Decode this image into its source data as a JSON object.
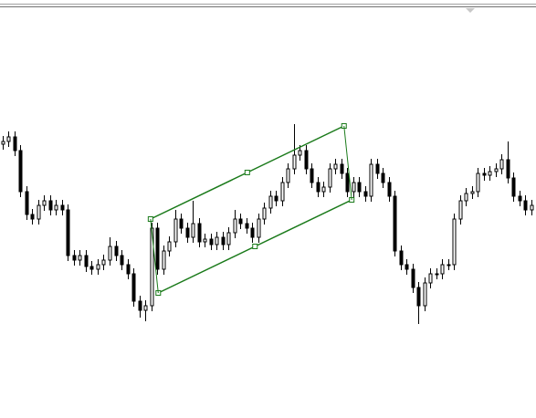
{
  "chart_data": {
    "type": "candlestick",
    "xlim": [
      -0.4615,
      89.846
    ],
    "ylim": [
      0,
      446
    ],
    "up_color": "#ffffff",
    "down_color": "#000000",
    "edge_color": "#000000",
    "open": [
      300,
      303,
      308,
      293,
      248,
      223,
      218,
      233,
      238,
      228,
      233,
      228,
      178,
      173,
      178,
      166,
      163,
      168,
      173,
      188,
      178,
      168,
      158,
      128,
      118,
      123,
      208,
      163,
      183,
      193,
      218,
      208,
      198,
      213,
      193,
      196,
      190,
      198,
      190,
      203,
      218,
      213,
      208,
      198,
      218,
      230,
      243,
      238,
      258,
      273,
      288,
      293,
      273,
      258,
      248,
      253,
      273,
      278,
      268,
      248,
      258,
      248,
      243,
      278,
      268,
      258,
      243,
      183,
      168,
      163,
      143,
      123,
      148,
      158,
      158,
      168,
      168,
      218,
      238,
      246,
      248,
      268,
      266,
      270,
      273,
      283,
      263,
      243,
      238,
      228
    ],
    "high": [
      309,
      314,
      314,
      299,
      254,
      229,
      239,
      244,
      244,
      239,
      239,
      234,
      184,
      184,
      184,
      172,
      174,
      179,
      198,
      194,
      184,
      174,
      164,
      134,
      129,
      214,
      214,
      189,
      199,
      228,
      224,
      214,
      238,
      219,
      202,
      202,
      204,
      204,
      209,
      228,
      224,
      219,
      214,
      224,
      236,
      249,
      249,
      264,
      279,
      322,
      299,
      299,
      279,
      264,
      259,
      279,
      284,
      284,
      274,
      264,
      264,
      254,
      284,
      284,
      274,
      264,
      249,
      189,
      174,
      169,
      149,
      154,
      164,
      164,
      174,
      174,
      224,
      244,
      252,
      254,
      274,
      274,
      276,
      279,
      289,
      303,
      269,
      249,
      244,
      239
    ],
    "low": [
      294,
      297,
      287,
      242,
      217,
      212,
      212,
      227,
      222,
      222,
      222,
      172,
      167,
      167,
      160,
      157,
      157,
      162,
      167,
      172,
      162,
      152,
      122,
      110,
      106,
      117,
      157,
      157,
      177,
      187,
      202,
      192,
      192,
      187,
      187,
      184,
      184,
      184,
      184,
      197,
      207,
      202,
      192,
      192,
      212,
      224,
      232,
      232,
      252,
      267,
      282,
      267,
      252,
      242,
      242,
      247,
      267,
      262,
      242,
      242,
      242,
      237,
      237,
      262,
      252,
      237,
      177,
      162,
      157,
      137,
      103,
      117,
      142,
      152,
      152,
      162,
      162,
      212,
      232,
      240,
      242,
      260,
      260,
      264,
      267,
      257,
      237,
      232,
      222,
      222
    ],
    "close": [
      303,
      308,
      293,
      248,
      223,
      218,
      233,
      238,
      228,
      233,
      228,
      178,
      173,
      178,
      166,
      163,
      168,
      173,
      188,
      178,
      168,
      158,
      128,
      118,
      123,
      208,
      163,
      183,
      193,
      218,
      208,
      198,
      213,
      193,
      196,
      190,
      198,
      190,
      203,
      218,
      213,
      208,
      198,
      218,
      230,
      243,
      238,
      258,
      273,
      288,
      293,
      273,
      258,
      248,
      253,
      273,
      278,
      268,
      248,
      258,
      248,
      243,
      278,
      268,
      258,
      243,
      183,
      168,
      163,
      143,
      123,
      148,
      158,
      158,
      168,
      168,
      218,
      238,
      246,
      248,
      268,
      266,
      270,
      273,
      283,
      263,
      243,
      238,
      228,
      233
    ],
    "channel": {
      "color": "#1a7a1a",
      "upper": {
        "x": [
          24.9,
          41.2,
          57.5
        ],
        "values": [
          218,
          269,
          320
        ]
      },
      "lower": {
        "x": [
          26.2,
          42.5,
          58.8
        ],
        "values": [
          137,
          188,
          239
        ]
      }
    }
  }
}
